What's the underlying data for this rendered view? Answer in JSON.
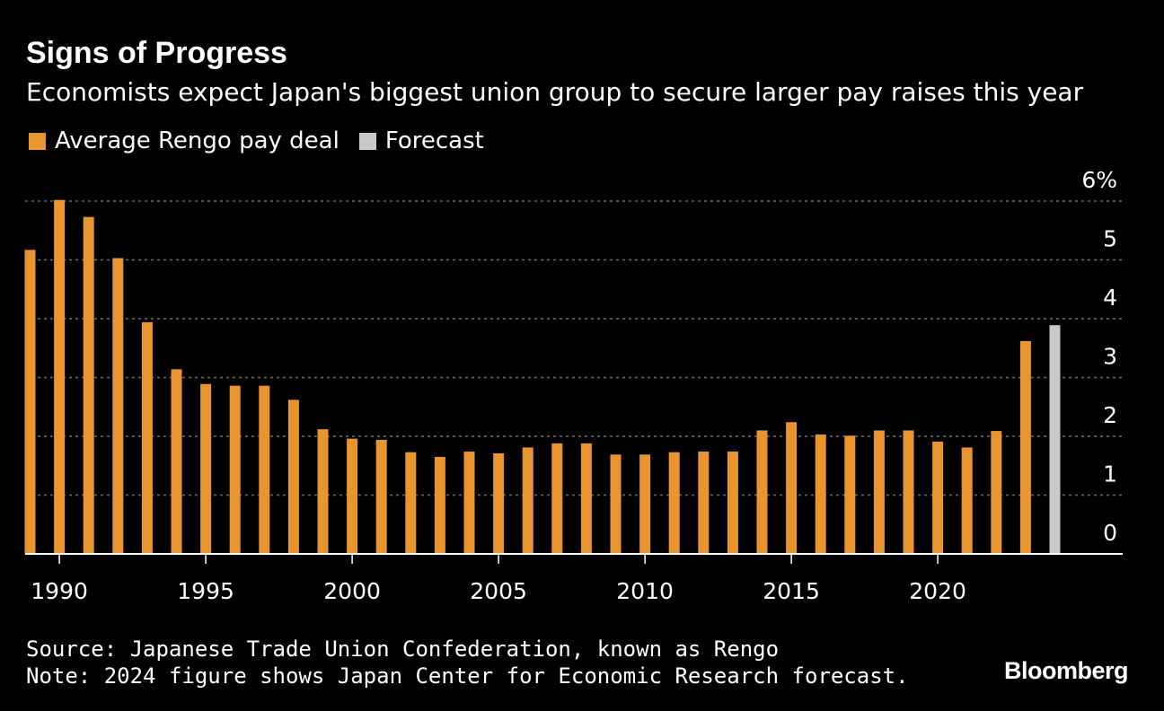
{
  "title": "Signs of Progress",
  "subtitle": "Economists expect Japan's biggest union group to secure larger pay raises this year",
  "legend": [
    {
      "label": "Average Rengo pay deal",
      "color": "#e8952f"
    },
    {
      "label": "Forecast",
      "color": "#c8c8c8"
    }
  ],
  "source": "Source: Japanese Trade Union Confederation, known as Rengo",
  "note": "Note: 2024 figure shows Japan Center for Economic Research forecast.",
  "brand": "Bloomberg",
  "chart_data": {
    "type": "bar",
    "title": "Signs of Progress",
    "xlabel": "",
    "ylabel": "",
    "ylim": [
      0,
      6
    ],
    "y_ticks": [
      0,
      1,
      2,
      3,
      4,
      5,
      6
    ],
    "y_tick_labels": [
      "0",
      "1",
      "2",
      "3",
      "4",
      "5",
      "6%"
    ],
    "x_tick_labels": [
      "1990",
      "1995",
      "2000",
      "2005",
      "2010",
      "2015",
      "2020"
    ],
    "categories": [
      1989,
      1990,
      1991,
      1992,
      1993,
      1994,
      1995,
      1996,
      1997,
      1998,
      1999,
      2000,
      2001,
      2002,
      2003,
      2004,
      2005,
      2006,
      2007,
      2008,
      2009,
      2010,
      2011,
      2012,
      2013,
      2014,
      2015,
      2016,
      2017,
      2018,
      2019,
      2020,
      2021,
      2022,
      2023,
      2024
    ],
    "series": [
      {
        "name": "Average Rengo pay deal",
        "color": "#e8952f",
        "values": [
          5.17,
          6.02,
          5.73,
          5.03,
          3.94,
          3.14,
          2.89,
          2.86,
          2.86,
          2.62,
          2.12,
          1.96,
          1.94,
          1.73,
          1.65,
          1.74,
          1.71,
          1.81,
          1.88,
          1.88,
          1.69,
          1.69,
          1.73,
          1.74,
          1.74,
          2.1,
          2.24,
          2.03,
          2.01,
          2.1,
          2.1,
          1.91,
          1.81,
          2.09,
          3.62,
          null
        ]
      },
      {
        "name": "Forecast",
        "color": "#c8c8c8",
        "values": [
          null,
          null,
          null,
          null,
          null,
          null,
          null,
          null,
          null,
          null,
          null,
          null,
          null,
          null,
          null,
          null,
          null,
          null,
          null,
          null,
          null,
          null,
          null,
          null,
          null,
          null,
          null,
          null,
          null,
          null,
          null,
          null,
          null,
          null,
          null,
          3.89
        ]
      }
    ],
    "grid": true,
    "legend_position": "top-left"
  }
}
